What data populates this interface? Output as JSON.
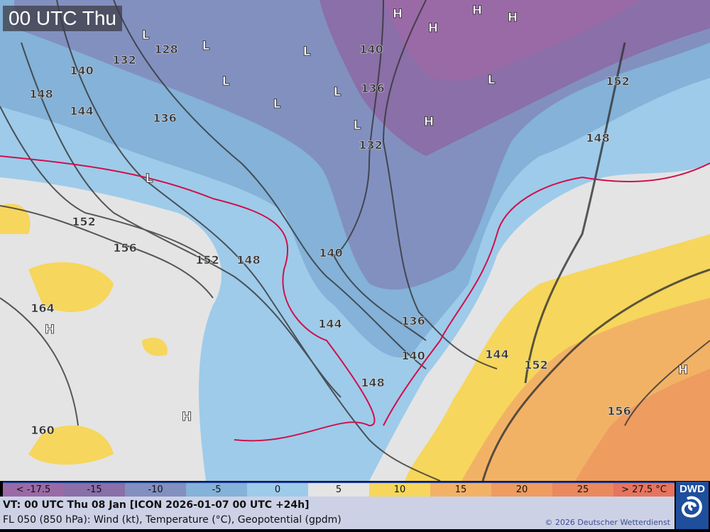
{
  "title": "00 UTC Thu",
  "legend": {
    "items": [
      {
        "label": "< -17.5",
        "color": "#9a6aa6"
      },
      {
        "label": "-15",
        "color": "#8a6fa8"
      },
      {
        "label": "-10",
        "color": "#8290c0"
      },
      {
        "label": "-5",
        "color": "#84b2d8"
      },
      {
        "label": "0",
        "color": "#9ecbea"
      },
      {
        "label": "5",
        "color": "#e4e4e4"
      },
      {
        "label": "10",
        "color": "#f6d65c"
      },
      {
        "label": "15",
        "color": "#f2b266"
      },
      {
        "label": "20",
        "color": "#ee9c60"
      },
      {
        "label": "25",
        "color": "#ea885e"
      },
      {
        "label": "> 27.5 °C",
        "color": "#e6745e"
      }
    ]
  },
  "info": {
    "valid_time": "VT: 00 UTC Thu  08 Jan [ICON 2026-01-07 00 UTC +24h]",
    "description": "FL 050 (850 hPa): Wind (kt), Temperature (°C), Geopotential (gpdm)",
    "copyright": "© 2026 Deutscher Wetterdienst"
  },
  "logo": {
    "text": "DWD"
  },
  "pressure_centers": [
    "L",
    "L",
    "L",
    "L",
    "L",
    "L",
    "L",
    "L",
    "L",
    "H",
    "H",
    "H",
    "H",
    "H",
    "H",
    "H",
    "H"
  ],
  "contour_labels": [
    "128",
    "132",
    "140",
    "148",
    "144",
    "136",
    "140",
    "136",
    "132",
    "152",
    "156",
    "152",
    "148",
    "140",
    "144",
    "136",
    "140",
    "148",
    "144",
    "152",
    "156",
    "164",
    "160",
    "152",
    "148"
  ]
}
